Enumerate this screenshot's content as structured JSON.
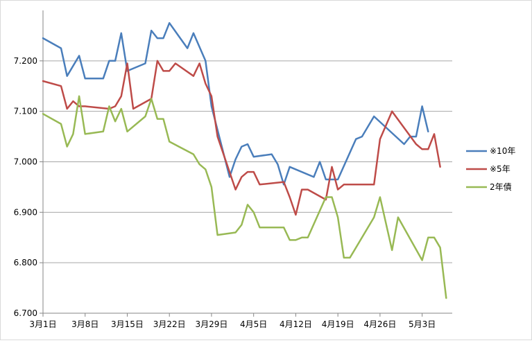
{
  "chart_data": {
    "type": "line",
    "title": "",
    "xlabel": "",
    "ylabel": "",
    "ylim": [
      6.7,
      7.3
    ],
    "yticks": [
      "6.700",
      "6.800",
      "6.900",
      "7.000",
      "7.100",
      "7.200"
    ],
    "xticks": [
      "3月1日",
      "3月8日",
      "3月15日",
      "3月22日",
      "3月29日",
      "4月5日",
      "4月12日",
      "4月19日",
      "4月26日",
      "5月3日"
    ],
    "grid": "horizontal",
    "legend_position": "right",
    "series": [
      {
        "name": "※10年",
        "color": "#4a7ebb",
        "points": [
          [
            "3月1日",
            7.245
          ],
          [
            "3月4日",
            7.225
          ],
          [
            "3月5日",
            7.17
          ],
          [
            "3月7日",
            7.21
          ],
          [
            "3月8日",
            7.165
          ],
          [
            "3月11日",
            7.165
          ],
          [
            "3月12日",
            7.2
          ],
          [
            "3月13日",
            7.2
          ],
          [
            "3月14日",
            7.255
          ],
          [
            "3月15日",
            7.18
          ],
          [
            "3月18日",
            7.195
          ],
          [
            "3月19日",
            7.26
          ],
          [
            "3月20日",
            7.245
          ],
          [
            "3月21日",
            7.245
          ],
          [
            "3月22日",
            7.275
          ],
          [
            "3月25日",
            7.225
          ],
          [
            "3月26日",
            7.255
          ],
          [
            "3月28日",
            7.2
          ],
          [
            "3月29日",
            7.11
          ],
          [
            "4月1日",
            6.97
          ],
          [
            "4月2日",
            7.005
          ],
          [
            "4月3日",
            7.03
          ],
          [
            "4月4日",
            7.035
          ],
          [
            "4月5日",
            7.01
          ],
          [
            "4月8日",
            7.015
          ],
          [
            "4月9日",
            6.995
          ],
          [
            "4月10日",
            6.955
          ],
          [
            "4月11日",
            6.99
          ],
          [
            "4月15日",
            6.97
          ],
          [
            "4月16日",
            7.0
          ],
          [
            "4月17日",
            6.965
          ],
          [
            "4月19日",
            6.965
          ],
          [
            "4月22日",
            7.045
          ],
          [
            "4月23日",
            7.05
          ],
          [
            "4月25日",
            7.09
          ],
          [
            "4月30日",
            7.035
          ],
          [
            "5月1日",
            7.05
          ],
          [
            "5月2日",
            7.05
          ],
          [
            "5月3日",
            7.11
          ],
          [
            "5月4日",
            7.06
          ]
        ]
      },
      {
        "name": "※5年",
        "color": "#be4b48",
        "points": [
          [
            "3月1日",
            7.16
          ],
          [
            "3月4日",
            7.15
          ],
          [
            "3月5日",
            7.105
          ],
          [
            "3月6日",
            7.12
          ],
          [
            "3月7日",
            7.11
          ],
          [
            "3月8日",
            7.11
          ],
          [
            "3月12日",
            7.105
          ],
          [
            "3月13日",
            7.11
          ],
          [
            "3月14日",
            7.13
          ],
          [
            "3月15日",
            7.195
          ],
          [
            "3月16日",
            7.105
          ],
          [
            "3月19日",
            7.125
          ],
          [
            "3月20日",
            7.2
          ],
          [
            "3月21日",
            7.18
          ],
          [
            "3月22日",
            7.18
          ],
          [
            "3月23日",
            7.195
          ],
          [
            "3月26日",
            7.17
          ],
          [
            "3月27日",
            7.195
          ],
          [
            "3月28日",
            7.155
          ],
          [
            "3月29日",
            7.13
          ],
          [
            "3月30日",
            7.05
          ],
          [
            "4月2日",
            6.945
          ],
          [
            "4月3日",
            6.97
          ],
          [
            "4月4日",
            6.98
          ],
          [
            "4月5日",
            6.98
          ],
          [
            "4月6日",
            6.955
          ],
          [
            "4月10日",
            6.96
          ],
          [
            "4月11日",
            6.93
          ],
          [
            "4月12日",
            6.895
          ],
          [
            "4月13日",
            6.945
          ],
          [
            "4月14日",
            6.945
          ],
          [
            "4月17日",
            6.925
          ],
          [
            "4月18日",
            6.99
          ],
          [
            "4月19日",
            6.945
          ],
          [
            "4月20日",
            6.955
          ],
          [
            "4月25日",
            6.955
          ],
          [
            "4月26日",
            7.045
          ],
          [
            "4月28日",
            7.1
          ],
          [
            "5月2日",
            7.035
          ],
          [
            "5月3日",
            7.025
          ],
          [
            "5月4日",
            7.025
          ],
          [
            "5月5日",
            7.055
          ],
          [
            "5月6日",
            6.99
          ]
        ]
      },
      {
        "name": "2年債",
        "color": "#98b954",
        "points": [
          [
            "3月1日",
            7.095
          ],
          [
            "3月4日",
            7.075
          ],
          [
            "3月5日",
            7.03
          ],
          [
            "3月6日",
            7.055
          ],
          [
            "3月7日",
            7.13
          ],
          [
            "3月8日",
            7.055
          ],
          [
            "3月11日",
            7.06
          ],
          [
            "3月12日",
            7.11
          ],
          [
            "3月13日",
            7.08
          ],
          [
            "3月14日",
            7.105
          ],
          [
            "3月15日",
            7.06
          ],
          [
            "3月18日",
            7.09
          ],
          [
            "3月19日",
            7.125
          ],
          [
            "3月20日",
            7.085
          ],
          [
            "3月21日",
            7.085
          ],
          [
            "3月22日",
            7.04
          ],
          [
            "3月26日",
            7.015
          ],
          [
            "3月27日",
            6.995
          ],
          [
            "3月28日",
            6.985
          ],
          [
            "3月29日",
            6.95
          ],
          [
            "3月30日",
            6.855
          ],
          [
            "4月2日",
            6.86
          ],
          [
            "4月3日",
            6.875
          ],
          [
            "4月4日",
            6.915
          ],
          [
            "4月5日",
            6.9
          ],
          [
            "4月6日",
            6.87
          ],
          [
            "4月9日",
            6.87
          ],
          [
            "4月10日",
            6.87
          ],
          [
            "4月11日",
            6.845
          ],
          [
            "4月12日",
            6.845
          ],
          [
            "4月13日",
            6.85
          ],
          [
            "4月14日",
            6.85
          ],
          [
            "4月17日",
            6.93
          ],
          [
            "4月18日",
            6.93
          ],
          [
            "4月19日",
            6.89
          ],
          [
            "4月20日",
            6.81
          ],
          [
            "4月21日",
            6.81
          ],
          [
            "4月25日",
            6.89
          ],
          [
            "4月26日",
            6.93
          ],
          [
            "4月28日",
            6.825
          ],
          [
            "4月29日",
            6.89
          ],
          [
            "5月3日",
            6.805
          ],
          [
            "5月4日",
            6.85
          ],
          [
            "5月5日",
            6.85
          ],
          [
            "5月6日",
            6.83
          ],
          [
            "5月7日",
            6.73
          ]
        ]
      }
    ]
  }
}
